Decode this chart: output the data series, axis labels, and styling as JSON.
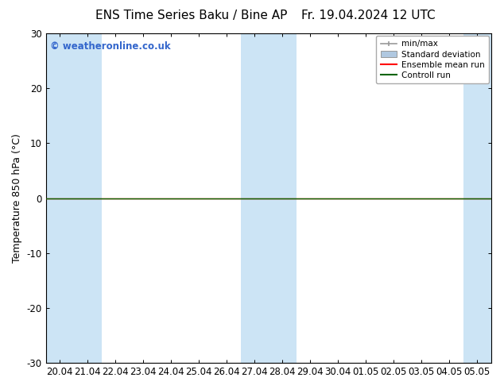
{
  "title_left": "ENS Time Series Baku / Bine AP",
  "title_right": "Fr. 19.04.2024 12 UTC",
  "ylabel": "Temperature 850 hPa (°C)",
  "watermark": "© weatheronline.co.uk",
  "ylim": [
    -30,
    30
  ],
  "yticks": [
    -30,
    -20,
    -10,
    0,
    10,
    20,
    30
  ],
  "x_labels": [
    "20.04",
    "21.04",
    "22.04",
    "23.04",
    "24.04",
    "25.04",
    "26.04",
    "27.04",
    "28.04",
    "29.04",
    "30.04",
    "01.05",
    "02.05",
    "03.05",
    "04.05",
    "05.05"
  ],
  "shaded_col_indices": [
    0,
    1,
    7,
    8,
    15
  ],
  "shade_color": "#cce4f5",
  "background_color": "#ffffff",
  "plot_bg_color": "#ffffff",
  "zero_line_color": "#000000",
  "control_run_color": "#006400",
  "ensemble_mean_color": "#ff0000",
  "control_run_value": 0.0,
  "ensemble_mean_value": 0.0,
  "legend_entries": [
    {
      "label": "min/max",
      "color": "#999999"
    },
    {
      "label": "Standard deviation",
      "color": "#b0c8e0"
    },
    {
      "label": "Ensemble mean run",
      "color": "#ff0000"
    },
    {
      "label": "Controll run",
      "color": "#006400"
    }
  ],
  "title_fontsize": 11,
  "tick_fontsize": 8.5,
  "label_fontsize": 9,
  "watermark_color": "#3366cc",
  "axis_color": "#000000"
}
